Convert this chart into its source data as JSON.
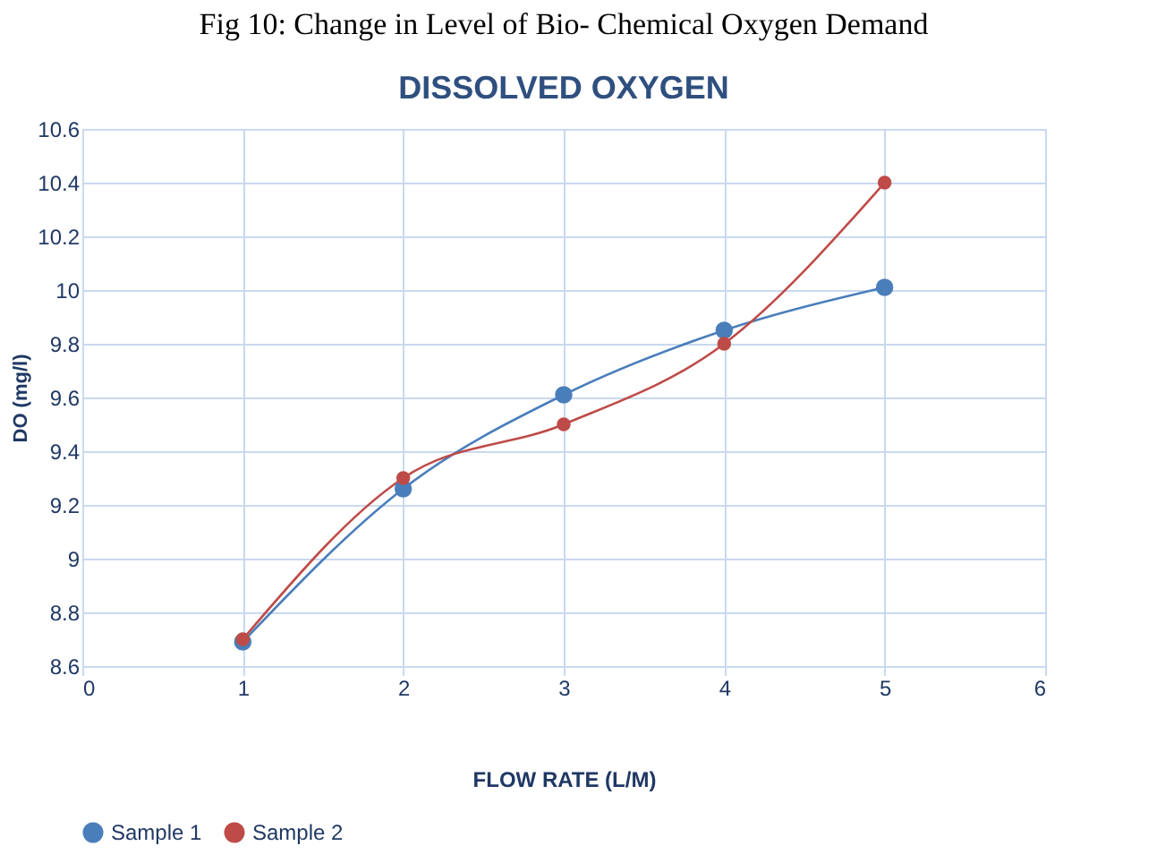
{
  "chart_data": {
    "type": "line",
    "title": "DISSOLVED OXYGEN",
    "xlabel": "FLOW RATE (L/M)",
    "ylabel": "DO (mg/l)",
    "annotations": [
      "Fig 10: Change in Level of Bio- Chemical Oxygen Demand"
    ],
    "x": [
      1,
      2,
      3,
      4,
      5
    ],
    "series": [
      {
        "name": "Sample 1",
        "color": "#4a7ebb",
        "values": [
          8.69,
          9.26,
          9.61,
          9.85,
          10.01
        ]
      },
      {
        "name": "Sample 2",
        "color": "#be4b48",
        "values": [
          8.7,
          9.3,
          9.5,
          9.8,
          10.4
        ]
      }
    ],
    "xlim": [
      0,
      6
    ],
    "xticks": [
      0,
      1,
      2,
      3,
      4,
      5,
      6
    ],
    "ylim": [
      8.6,
      10.6
    ],
    "yticks": [
      8.6,
      8.8,
      9,
      9.2,
      9.4,
      9.6,
      9.8,
      10,
      10.2,
      10.4,
      10.6
    ],
    "grid": true,
    "legend": "bottom",
    "marker": "circle",
    "line_style": "solid"
  }
}
